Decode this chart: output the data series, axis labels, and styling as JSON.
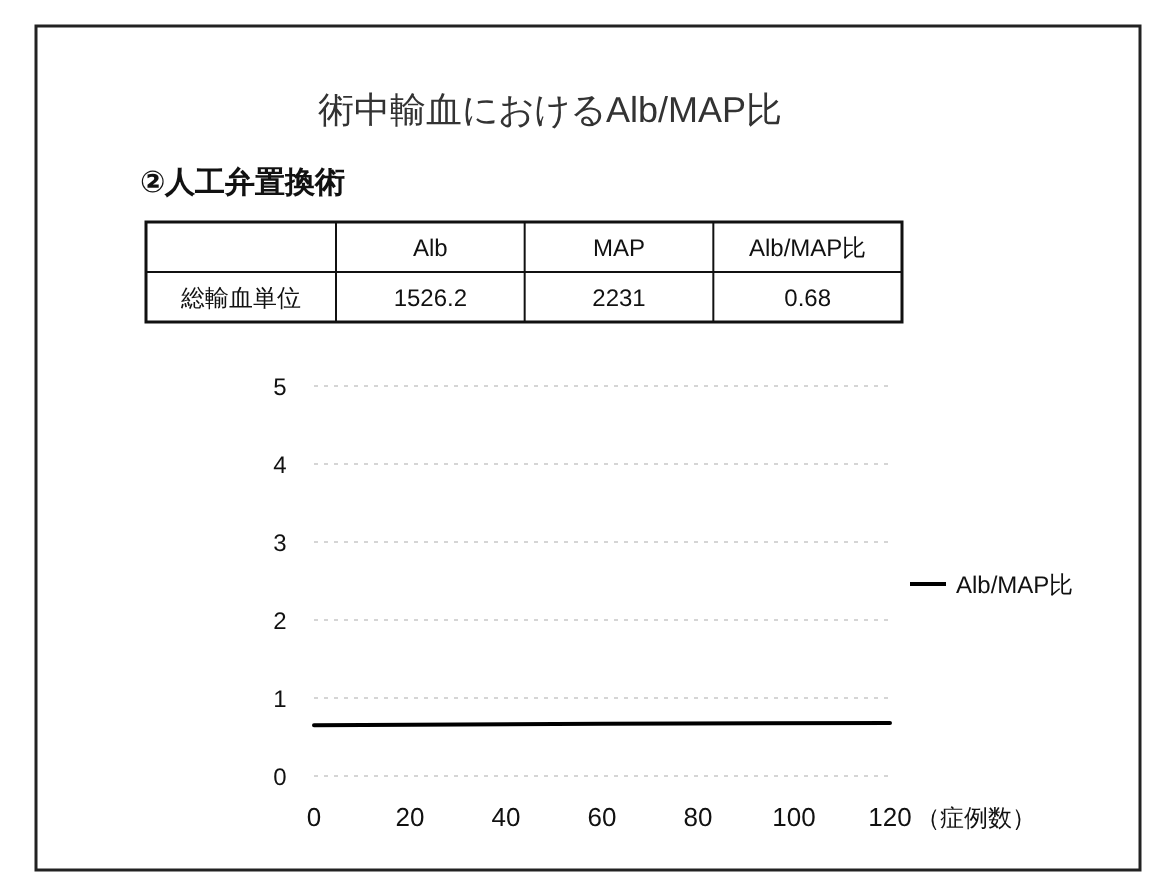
{
  "chart_data": [
    {
      "type": "other",
      "title": "術中輸血におけるAlb/MAP比",
      "subtitle": "②人工弁置換術",
      "categories": [
        "Alb",
        "MAP",
        "Alb/MAP比"
      ],
      "series": [
        {
          "name": "総輸血単位",
          "values": [
            1526.2,
            2231,
            0.68
          ]
        }
      ],
      "data_labels": true
    },
    {
      "type": "line",
      "xlabel": "（症例数）",
      "x": [
        0,
        60,
        120
      ],
      "series": [
        {
          "name": "Alb/MAP比",
          "color": "#000000",
          "values": [
            0.65,
            0.67,
            0.68
          ]
        }
      ],
      "xlim": [
        0,
        120
      ],
      "ylim": [
        0,
        5
      ],
      "xticks": [
        0,
        20,
        40,
        60,
        80,
        100,
        120
      ],
      "yticks": [
        0,
        1,
        2,
        3,
        4,
        5
      ],
      "grid": "y",
      "legend": "right"
    }
  ]
}
